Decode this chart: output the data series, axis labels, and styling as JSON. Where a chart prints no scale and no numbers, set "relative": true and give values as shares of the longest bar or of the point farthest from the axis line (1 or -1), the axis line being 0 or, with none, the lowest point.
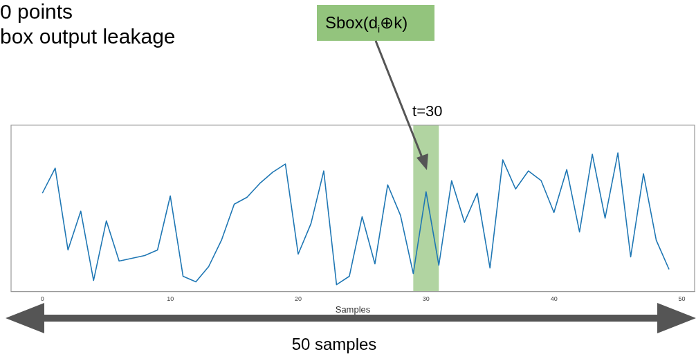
{
  "chart_data": {
    "type": "line",
    "title": "0 points",
    "subtitle": "box output leakage",
    "xlabel": "Samples",
    "relative": true,
    "x": [
      0,
      1,
      2,
      3,
      4,
      5,
      6,
      7,
      8,
      9,
      10,
      11,
      12,
      13,
      14,
      15,
      16,
      17,
      18,
      19,
      20,
      21,
      22,
      23,
      24,
      25,
      26,
      27,
      28,
      29,
      30,
      31,
      32,
      33,
      34,
      35,
      36,
      37,
      38,
      39,
      40,
      41,
      42,
      43,
      44,
      45,
      46,
      47,
      48,
      49
    ],
    "series": [
      {
        "color": "#1f77b4",
        "values": [
          0.71,
          0.89,
          0.3,
          0.58,
          0.08,
          0.51,
          0.22,
          0.24,
          0.26,
          0.3,
          0.69,
          0.11,
          0.07,
          0.18,
          0.37,
          0.63,
          0.68,
          0.78,
          0.86,
          0.92,
          0.27,
          0.49,
          0.87,
          0.05,
          0.11,
          0.54,
          0.2,
          0.77,
          0.55,
          0.13,
          0.72,
          0.19,
          0.8,
          0.5,
          0.71,
          0.17,
          0.95,
          0.74,
          0.87,
          0.8,
          0.57,
          0.88,
          0.43,
          0.99,
          0.53,
          1.0,
          0.25,
          0.85,
          0.37,
          0.16
        ]
      }
    ],
    "xlim": [
      -2.45,
      51
    ],
    "xticks": [
      0,
      10,
      20,
      30,
      40,
      50
    ],
    "tick_labels": "x",
    "grid": false,
    "legend": false,
    "bands": [
      {
        "axis": "x",
        "from": 29,
        "to": 31,
        "label": "t=30",
        "color": "#93c47d"
      }
    ],
    "annotations": [
      "Sbox(d$_{i}$⊕k)",
      "50 samples"
    ]
  }
}
